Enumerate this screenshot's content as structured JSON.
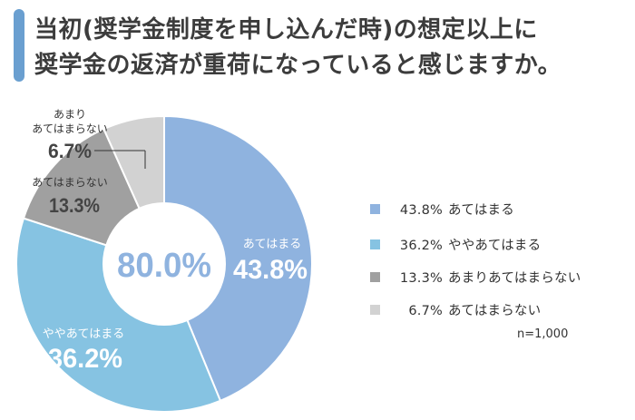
{
  "title": {
    "line1": "当初(奨学金制度を申し込んだ時)の想定以上に",
    "line2": "奨学金の返済が重荷になっていると感じますか。"
  },
  "colors": {
    "accent": "#6a9fd0",
    "slice_1": "#8fb3df",
    "slice_2": "#86c3e2",
    "slice_3": "#a0a0a0",
    "slice_4": "#d2d2d2"
  },
  "chart_data": {
    "type": "pie",
    "donut": true,
    "center_label": "80.0%",
    "slices": [
      {
        "label": "あてはまる",
        "value": 43.8,
        "value_label": "43.8%",
        "color": "#8fb3df"
      },
      {
        "label": "ややあてはまる",
        "value": 36.2,
        "value_label": "36.2%",
        "color": "#86c3e2"
      },
      {
        "label": "あまりあてはまらない",
        "value": 13.3,
        "value_label": "13.3%",
        "color": "#a0a0a0"
      },
      {
        "label": "あてはまらない",
        "value": 6.7,
        "value_label": "6.7%",
        "color": "#d2d2d2"
      }
    ],
    "outside_labels": {
      "label_3": "あまり\nあてはまらない",
      "label_4": "あてはまらない"
    },
    "legend_placement": "right"
  },
  "legend": {
    "items": [
      {
        "pct": "43.8%",
        "label": "あてはまる",
        "color": "#8fb3df"
      },
      {
        "pct": "36.2%",
        "label": "ややあてはまる",
        "color": "#86c3e2"
      },
      {
        "pct": "13.3%",
        "label": "あまりあてはまらない",
        "color": "#a0a0a0"
      },
      {
        "pct": "6.7%",
        "label": "あてはまらない",
        "color": "#d2d2d2"
      }
    ]
  },
  "sample_size": "n=1,000"
}
